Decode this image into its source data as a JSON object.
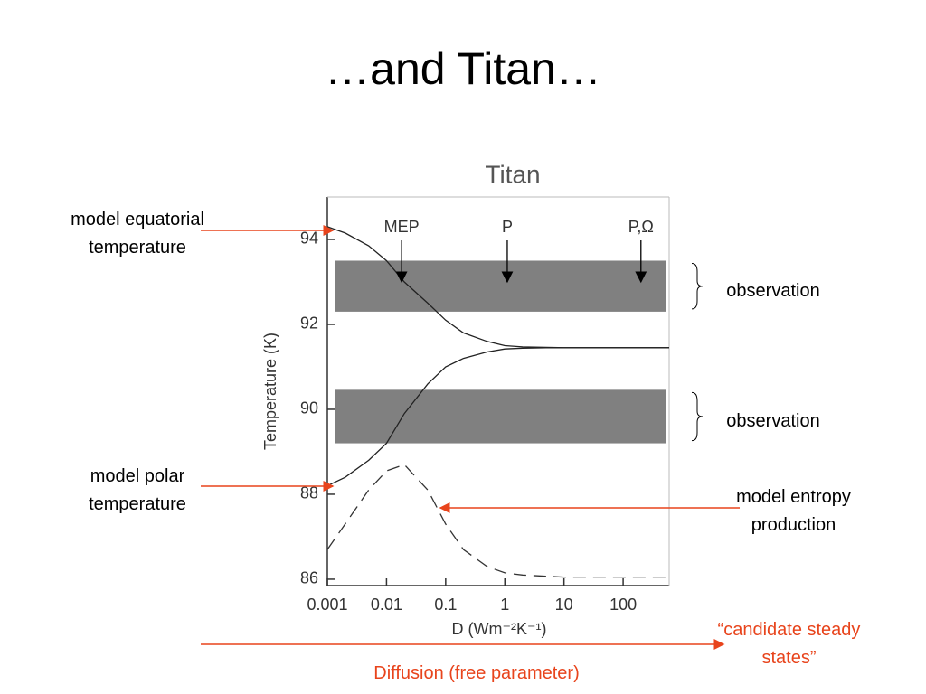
{
  "title": "…and Titan…",
  "chart_data": {
    "type": "line",
    "title": "Titan",
    "x_label": "D (Wm⁻²K⁻¹)",
    "y_label": "Temperature (K)",
    "x_log": true,
    "xlim": [
      0.001,
      600
    ],
    "xticks": [
      0.001,
      0.01,
      0.1,
      1,
      10,
      100
    ],
    "ylim": [
      85.85,
      95.0
    ],
    "yticks": [
      86,
      88,
      90,
      92,
      94
    ],
    "x": [
      0.001,
      0.002,
      0.005,
      0.01,
      0.02,
      0.05,
      0.1,
      0.2,
      0.5,
      1,
      2,
      5,
      10,
      100,
      600
    ],
    "series": [
      {
        "color": "#222222",
        "dash": false,
        "values": [
          94.3,
          94.15,
          93.85,
          93.5,
          93.0,
          92.5,
          92.1,
          91.8,
          91.6,
          91.5,
          91.47,
          91.46,
          91.45,
          91.45,
          91.45
        ]
      },
      {
        "color": "#222222",
        "dash": false,
        "values": [
          88.2,
          88.4,
          88.8,
          89.2,
          89.9,
          90.6,
          91.0,
          91.2,
          91.35,
          91.42,
          91.44,
          91.45,
          91.45,
          91.45,
          91.45
        ]
      },
      {
        "color": "#333333",
        "dash": true,
        "values": [
          86.7,
          87.3,
          88.1,
          88.55,
          88.7,
          88.1,
          87.3,
          86.7,
          86.3,
          86.15,
          86.1,
          86.07,
          86.05,
          86.05,
          86.05
        ]
      }
    ],
    "bands": [
      {
        "name": "observation",
        "low": 92.3,
        "high": 93.5,
        "color": "#808080"
      },
      {
        "name": "observation",
        "low": 89.2,
        "high": 90.46,
        "color": "#808080"
      }
    ],
    "markers": [
      {
        "label": "MEP",
        "x": 0.018
      },
      {
        "label": "P",
        "x": 1.1
      },
      {
        "label": "P,Ω",
        "x": 200
      }
    ]
  },
  "callouts": [
    "model equatorial temperature",
    "model polar temperature",
    "model entropy production",
    "“candidate steady states”",
    "Diffusion (free parameter)"
  ]
}
